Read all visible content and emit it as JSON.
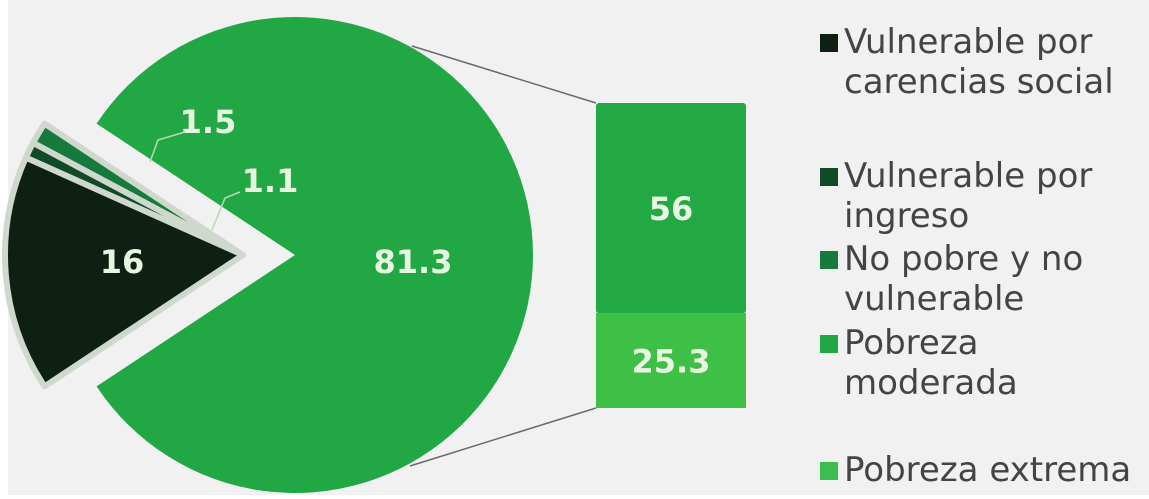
{
  "colors": {
    "background": "#f1f1f1",
    "vulnerable_carencias": "#0e1f14",
    "vulnerable_ingreso": "#114a27",
    "no_pobre": "#167a3d",
    "pobreza_moderada": "#21a845",
    "pobreza_extrema": "#3bbd4f",
    "bar_top": "#22a943",
    "bar_bottom": "#3ebf45",
    "label_text": "#e8f5e0"
  },
  "chart_data": {
    "type": "pie",
    "pie": {
      "slices": [
        {
          "label": "Vulnerable por carencias social",
          "value": 16,
          "value_label": "16",
          "color": "#0e1f14",
          "exploded": true
        },
        {
          "label": "Vulnerable por ingreso",
          "value": 1.1,
          "value_label": "1.1",
          "color": "#114a27",
          "exploded": true
        },
        {
          "label": "No pobre y no vulnerable",
          "value": 1.5,
          "value_label": "1.5",
          "color": "#167a3d",
          "exploded": true
        },
        {
          "label": "Pobreza",
          "value": 81.3,
          "value_label": "81.3",
          "color": "#21a845",
          "exploded": false
        }
      ]
    },
    "breakdown_bar": {
      "of": "81.3",
      "segments": [
        {
          "label": "Pobreza moderada",
          "value": 56,
          "value_label": "56",
          "color": "#22a943"
        },
        {
          "label": "Pobreza extrema",
          "value": 25.3,
          "value_label": "25.3",
          "color": "#3ebf45"
        }
      ]
    },
    "legend": {
      "placement": "right",
      "items": [
        {
          "label": "Vulnerable por carencias social",
          "lines": [
            "Vulnerable por",
            "carencias social"
          ],
          "color": "#0e1f14"
        },
        {
          "label": "Vulnerable por ingreso",
          "lines": [
            "Vulnerable por",
            "ingreso"
          ],
          "color": "#114a27"
        },
        {
          "label": "No pobre y no vulnerable",
          "lines": [
            "No pobre y no",
            "vulnerable"
          ],
          "color": "#167a3d"
        },
        {
          "label": "Pobreza moderada",
          "lines": [
            "Pobreza moderada"
          ],
          "color": "#21a845"
        },
        {
          "label": "Pobreza extrema",
          "lines": [
            "Pobreza extrema"
          ],
          "color": "#3bbd4f"
        }
      ]
    }
  }
}
